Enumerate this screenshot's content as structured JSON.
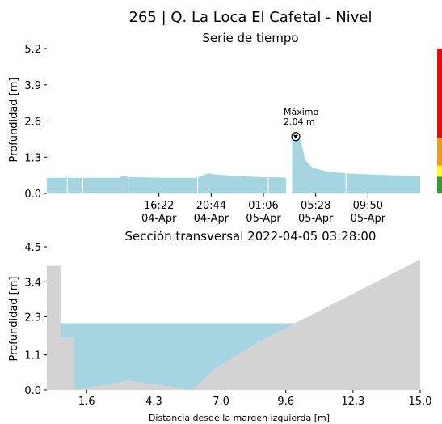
{
  "page_title": "265 | Q. La Loca El Cafetal - Nivel",
  "chart_data": [
    {
      "type": "area",
      "title": "Serie de tiempo",
      "ylabel": "Profundidad [m]",
      "xlabel": "",
      "ylim": [
        0,
        5.2
      ],
      "y_ticks": [
        "0.0",
        "1.3",
        "2.6",
        "3.9",
        "5.2"
      ],
      "x_ticks": [
        {
          "time": "16:22",
          "date": "04-Apr"
        },
        {
          "time": "20:44",
          "date": "04-Apr"
        },
        {
          "time": "01:06",
          "date": "05-Apr"
        },
        {
          "time": "05:28",
          "date": "05-Apr"
        },
        {
          "time": "09:50",
          "date": "05-Apr"
        }
      ],
      "x_range_hours": [
        -5.0,
        26.2
      ],
      "x_tick_hours": [
        4.367,
        8.733,
        13.1,
        17.467,
        21.833
      ],
      "series": [
        {
          "x_hours": [
            -5.0,
            1.0,
            1.3,
            1.8,
            2.3,
            5.0,
            7.5,
            8.5,
            9.0,
            11.0,
            13.1,
            15.0,
            15.3,
            15.5,
            15.8,
            16.1,
            16.3,
            16.6,
            17.2,
            18.5,
            20.0,
            22.0,
            24.0,
            26.2
          ],
          "values": [
            0.56,
            0.56,
            0.62,
            0.6,
            0.58,
            0.56,
            0.56,
            0.72,
            0.68,
            0.62,
            0.58,
            0.57,
            0.68,
            1.95,
            2.04,
            1.98,
            1.75,
            1.2,
            0.92,
            0.78,
            0.72,
            0.68,
            0.65,
            0.64
          ]
        }
      ],
      "gap_hours": [
        15.05,
        15.35
      ],
      "annotation": {
        "label": "Máximo",
        "value_label": "2.04 m",
        "x_hours": 15.8,
        "y": 2.04
      },
      "threshold_colors": [
        {
          "from": 0.0,
          "to": 0.6,
          "color": "#2ca02c"
        },
        {
          "from": 0.6,
          "to": 1.0,
          "color": "#ffff00"
        },
        {
          "from": 1.0,
          "to": 2.0,
          "color": "#ff9900"
        },
        {
          "from": 2.0,
          "to": 5.2,
          "color": "#ff0000"
        }
      ],
      "fill_color": "#a6d5e2"
    },
    {
      "type": "area",
      "title": "Sección transversal 2022-04-05 03:28:00",
      "xlabel": "Distancia desde la margen izquierda [m]",
      "ylabel": "Profundidad [m]",
      "xlim": [
        0,
        15.0
      ],
      "ylim": [
        0,
        4.5
      ],
      "x_ticks": [
        "1.6",
        "4.3",
        "7.0",
        "9.6",
        "12.3",
        "15.0"
      ],
      "x_tick_values": [
        1.6,
        4.3,
        7.0,
        9.6,
        12.3,
        15.0
      ],
      "y_ticks": [
        "0.0",
        "1.1",
        "2.3",
        "3.4",
        "4.5"
      ],
      "y_tick_values": [
        0.0,
        1.1,
        2.3,
        3.4,
        4.5
      ],
      "water_level": 2.1,
      "water_color": "#a6d5e2",
      "ground_color": "#d3d3d3",
      "ground_profile": {
        "x": [
          0.0,
          0.0,
          0.55,
          0.55,
          1.1,
          1.1,
          3.3,
          5.9,
          6.1,
          6.8,
          8.6,
          15.0
        ],
        "y": [
          0.0,
          3.9,
          3.9,
          1.65,
          1.65,
          0.0,
          0.3,
          0.0,
          0.2,
          0.7,
          1.55,
          4.1
        ]
      }
    }
  ]
}
